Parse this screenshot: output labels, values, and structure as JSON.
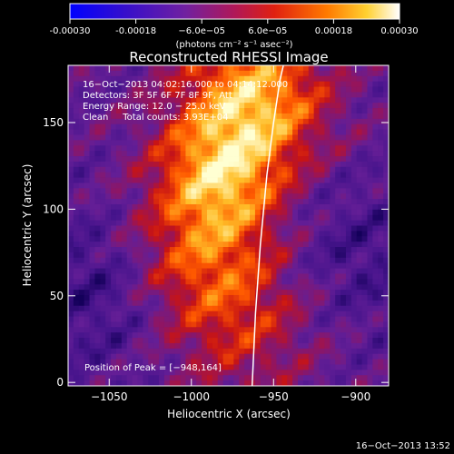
{
  "chart_data": {
    "type": "heatmap",
    "title": "Reconstructed RHESSI Image",
    "xlabel": "Heliocentric X (arcsec)",
    "ylabel": "Heliocentric Y (arcsec)",
    "xlim": [
      -1075,
      -880
    ],
    "ylim": [
      -2,
      183
    ],
    "x_ticks": [
      -1050,
      -1000,
      -950,
      -900
    ],
    "x_tick_labels": [
      "−1050",
      "−1000",
      "−950",
      "−900"
    ],
    "y_ticks": [
      0,
      50,
      100,
      150
    ],
    "y_tick_labels": [
      "0",
      "50",
      "100",
      "150"
    ],
    "colorbar": {
      "range": [
        -0.0003,
        0.0003
      ],
      "ticks": [
        -0.0003,
        -0.00018,
        -6e-05,
        6e-05,
        0.00018,
        0.0003
      ],
      "tick_labels": [
        "-0.00030",
        "-0.00018",
        "−6.0e−05",
        "6.0e−05",
        "0.00018",
        "0.00030"
      ],
      "unit_label": "(photons cm⁻² s⁻¹ asec⁻²)"
    },
    "annotations": [
      "16−Oct−2013 04:02:16.000 to 04:14:12.000",
      "Detectors: 3F 5F 6F 7F 8F 9F, Att",
      "Energy Range: 12.0 − 25.0 keV",
      "Clean     Total counts: 3.93E+04"
    ],
    "peak_label": "Position of Peak = [−948,164]",
    "peak": [
      -948,
      164
    ],
    "limb_curve": [
      [
        -963,
        -2
      ],
      [
        -961,
        40
      ],
      [
        -958,
        80
      ],
      [
        -954,
        120
      ],
      [
        -950,
        150
      ],
      [
        -946,
        175
      ],
      [
        -944,
        183
      ]
    ]
  },
  "footer_timestamp": "16−Oct−2013 13:52"
}
